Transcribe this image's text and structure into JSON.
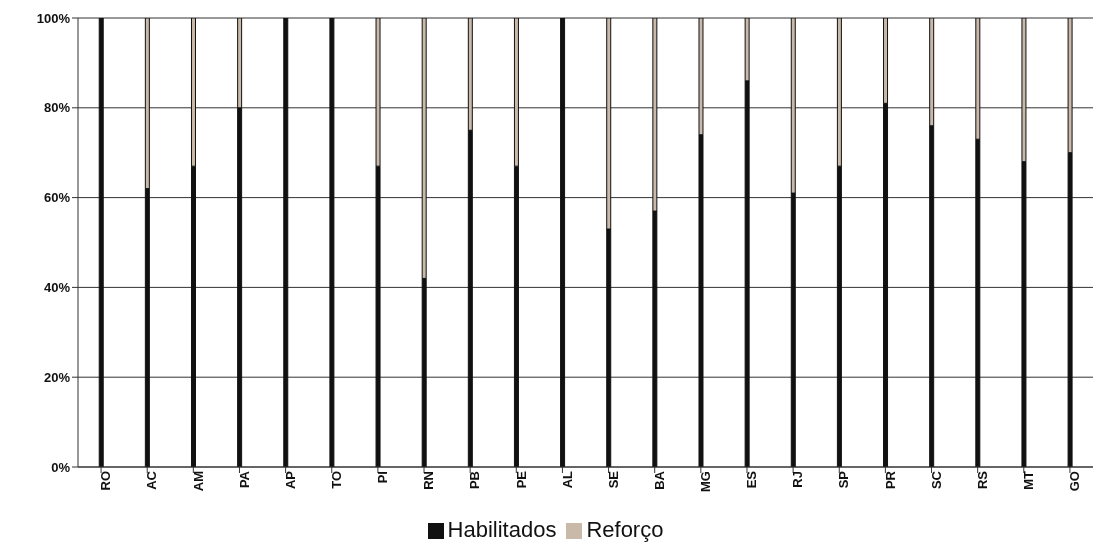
{
  "chart_data": {
    "type": "bar",
    "stacked": true,
    "categories": [
      "RO",
      "AC",
      "AM",
      "PA",
      "AP",
      "TO",
      "PI",
      "RN",
      "PB",
      "PE",
      "AL",
      "SE",
      "BA",
      "MG",
      "ES",
      "RJ",
      "SP",
      "PR",
      "SC",
      "RS",
      "MT",
      "GO"
    ],
    "series": [
      {
        "name": "Habilitados",
        "color": "#111111",
        "values": [
          100,
          62,
          67,
          80,
          100,
          100,
          67,
          42,
          75,
          67,
          100,
          53,
          57,
          74,
          86,
          61,
          67,
          81,
          76,
          73,
          68,
          70
        ]
      },
      {
        "name": "Reforço",
        "color": "#c9b9a9",
        "values": [
          0,
          38,
          33,
          20,
          0,
          0,
          33,
          58,
          25,
          33,
          0,
          47,
          43,
          26,
          14,
          39,
          33,
          19,
          24,
          27,
          32,
          30
        ]
      }
    ],
    "ylim": [
      0,
      100
    ],
    "yticks": [
      {
        "value": 0,
        "label": "0%"
      },
      {
        "value": 20,
        "label": "20%"
      },
      {
        "value": 40,
        "label": "40%"
      },
      {
        "value": 60,
        "label": "60%"
      },
      {
        "value": 80,
        "label": "80%"
      },
      {
        "value": 100,
        "label": "100%"
      }
    ],
    "grid": "y",
    "legend": "bottom"
  }
}
